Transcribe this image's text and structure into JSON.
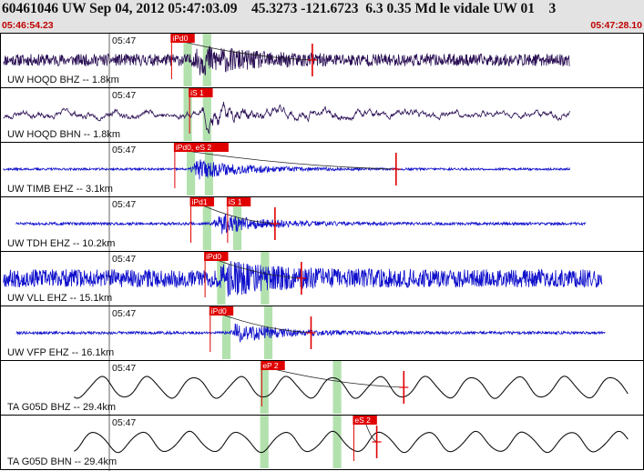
{
  "header": {
    "title": "60461046 UW Sep 04, 2012 05:47:03.09    45.3273 -121.6723  6.3 0.35 Md le vidale UW 01    3",
    "start_time": "05:46:54.23",
    "end_time": "05:47:28.10"
  },
  "colors": {
    "header_bg": "#e3e3e3",
    "time_text": "#c00000",
    "trace_dark": "#2b1055",
    "trace_blue": "#1010cc",
    "trace_black": "#111111",
    "pick_box": "#e00000",
    "pick_window": "#a6dca0"
  },
  "panels": [
    {
      "id": "hoqd-bhz",
      "label": "UW HOQD BHZ -- 1.8km",
      "minute_label": "05:47",
      "waveform": {
        "style": "noisy",
        "start": 0.005,
        "end": 0.885,
        "base_amp": 0.22,
        "event_start": 0.3,
        "event_amp": 0.48,
        "color": "trace_dark",
        "seed": 11
      },
      "picks": [
        {
          "label": "iPd0",
          "pos": 0.265
        }
      ],
      "windows": [
        {
          "start": 0.285,
          "end": 0.298
        },
        {
          "start": 0.315,
          "end": 0.328
        }
      ],
      "red_markers": [
        0.485
      ]
    },
    {
      "id": "hoqd-bhn",
      "label": "UW HOQD BHN -- 1.8km",
      "minute_label": "05:47",
      "waveform": {
        "style": "smooth-noise",
        "start": 0.005,
        "end": 0.885,
        "base_amp": 0.14,
        "event_start": 0.31,
        "event_amp": 0.45,
        "color": "trace_dark",
        "seed": 23
      },
      "picks": [
        {
          "label": "iS 1",
          "pos": 0.293
        }
      ],
      "windows": [
        {
          "start": 0.285,
          "end": 0.298
        },
        {
          "start": 0.315,
          "end": 0.328
        }
      ],
      "red_markers": []
    },
    {
      "id": "timb-ehz",
      "label": "UW TIMB EHZ -- 3.1km",
      "minute_label": "05:47",
      "waveform": {
        "style": "noisy",
        "start": 0.005,
        "end": 0.885,
        "base_amp": 0.04,
        "event_start": 0.295,
        "event_amp": 0.42,
        "color": "trace_blue",
        "seed": 37
      },
      "picks": [
        {
          "label": "iPd0, eS 2",
          "pos": 0.27
        }
      ],
      "windows": [
        {
          "start": 0.29,
          "end": 0.303
        },
        {
          "start": 0.318,
          "end": 0.331
        }
      ],
      "red_markers": [
        0.615
      ]
    },
    {
      "id": "tdh-ehz",
      "label": "UW TDH EHZ -- 10.2km",
      "minute_label": "05:47",
      "waveform": {
        "style": "noisy",
        "start": 0.025,
        "end": 0.91,
        "base_amp": 0.05,
        "event_start": 0.33,
        "event_amp": 0.42,
        "color": "trace_blue",
        "seed": 51
      },
      "picks": [
        {
          "label": "iPd1",
          "pos": 0.295
        },
        {
          "label": "iS 1",
          "pos": 0.352
        }
      ],
      "windows": [
        {
          "start": 0.315,
          "end": 0.328
        },
        {
          "start": 0.362,
          "end": 0.375
        }
      ],
      "red_markers": [
        0.427
      ]
    },
    {
      "id": "vll-ehz",
      "label": "UW VLL EHZ -- 15.1km",
      "minute_label": "05:47",
      "waveform": {
        "style": "noisy",
        "start": 0.005,
        "end": 0.935,
        "base_amp": 0.33,
        "event_start": 0.34,
        "event_amp": 0.46,
        "color": "trace_blue",
        "seed": 67
      },
      "picks": [
        {
          "label": "iPd0",
          "pos": 0.317
        }
      ],
      "windows": [
        {
          "start": 0.337,
          "end": 0.35
        },
        {
          "start": 0.405,
          "end": 0.418
        }
      ],
      "red_markers": [
        0.468
      ]
    },
    {
      "id": "vfp-ehz",
      "label": "UW VFP EHZ -- 16.1km",
      "minute_label": "05:47",
      "waveform": {
        "style": "noisy",
        "start": 0.025,
        "end": 0.94,
        "base_amp": 0.05,
        "event_start": 0.355,
        "event_amp": 0.42,
        "color": "trace_blue",
        "seed": 79
      },
      "picks": [
        {
          "label": "iPd0",
          "pos": 0.325
        }
      ],
      "windows": [
        {
          "start": 0.345,
          "end": 0.358
        },
        {
          "start": 0.41,
          "end": 0.423
        }
      ],
      "red_markers": [
        0.483
      ]
    },
    {
      "id": "g05d-bhz",
      "label": "TA G05D BHZ -- 29.4km",
      "minute_label": "05:47",
      "waveform": {
        "style": "sine",
        "start": 0.115,
        "end": 0.975,
        "base_amp": 0.38,
        "event_start": 0.45,
        "event_amp": 0.0,
        "color": "trace_black",
        "seed": 83,
        "period": 0.072,
        "phase": 0.4
      },
      "picks": [
        {
          "label": "eP 2",
          "pos": 0.405
        }
      ],
      "windows": [
        {
          "start": 0.404,
          "end": 0.417
        },
        {
          "start": 0.517,
          "end": 0.53
        }
      ],
      "red_markers": [
        0.627
      ]
    },
    {
      "id": "g05d-bhn",
      "label": "TA G05D BHN -- 29.4km",
      "minute_label": "05:47",
      "waveform": {
        "style": "sine",
        "start": 0.115,
        "end": 0.975,
        "base_amp": 0.36,
        "event_start": 0.58,
        "event_amp": 0.0,
        "color": "trace_black",
        "seed": 97,
        "period": 0.074,
        "phase": 1.7
      },
      "picks": [
        {
          "label": "eS 2",
          "pos": 0.548
        }
      ],
      "windows": [
        {
          "start": 0.404,
          "end": 0.417
        },
        {
          "start": 0.517,
          "end": 0.53
        }
      ],
      "red_markers": [
        0.585
      ]
    }
  ]
}
